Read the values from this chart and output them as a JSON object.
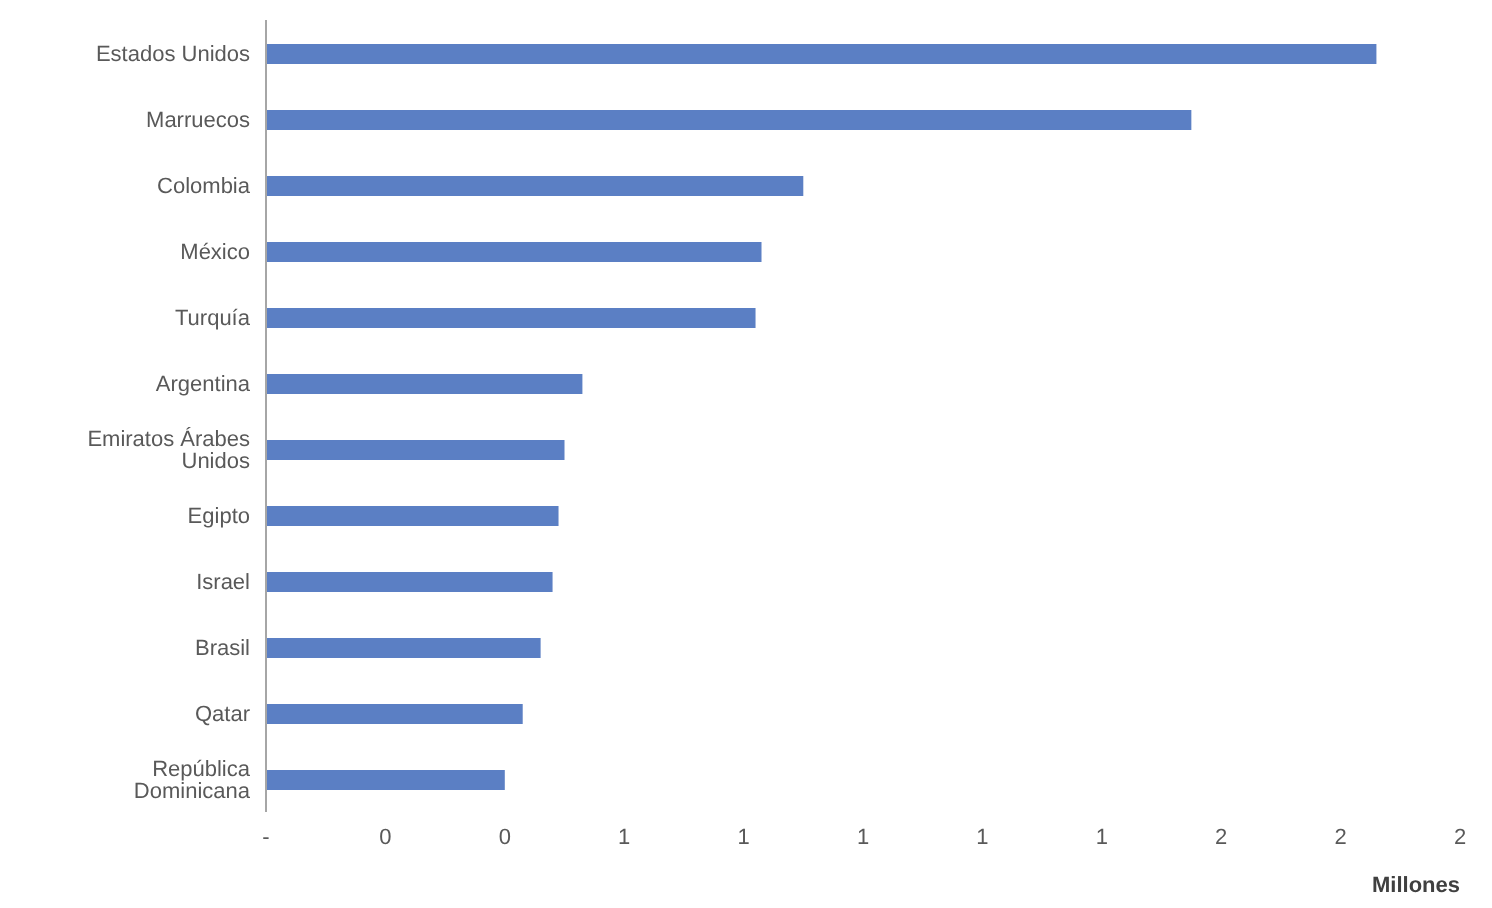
{
  "chart_data": {
    "type": "bar",
    "orientation": "horizontal",
    "xlabel": "Millones",
    "categories": [
      "Estados Unidos",
      "Marruecos",
      "Colombia",
      "México",
      "Turquía",
      "Argentina",
      "Emiratos Árabes Unidos",
      "Egipto",
      "Israel",
      "Brasil",
      "Qatar",
      "República Dominicana"
    ],
    "values": [
      1.86,
      1.55,
      0.9,
      0.83,
      0.82,
      0.53,
      0.5,
      0.49,
      0.48,
      0.46,
      0.43,
      0.4
    ],
    "color": "#5b7fc4",
    "xlim": [
      0,
      2
    ],
    "xticks": [
      {
        "value": 0,
        "label": "-"
      },
      {
        "value": 0.2,
        "label": "0"
      },
      {
        "value": 0.4,
        "label": "0"
      },
      {
        "value": 0.6,
        "label": "1"
      },
      {
        "value": 0.8,
        "label": "1"
      },
      {
        "value": 1,
        "label": "1"
      },
      {
        "value": 1.2,
        "label": "1"
      },
      {
        "value": 1.4,
        "label": "1"
      },
      {
        "value": 1.6,
        "label": "2"
      },
      {
        "value": 1.8,
        "label": "2"
      },
      {
        "value": 2,
        "label": "2"
      }
    ]
  }
}
